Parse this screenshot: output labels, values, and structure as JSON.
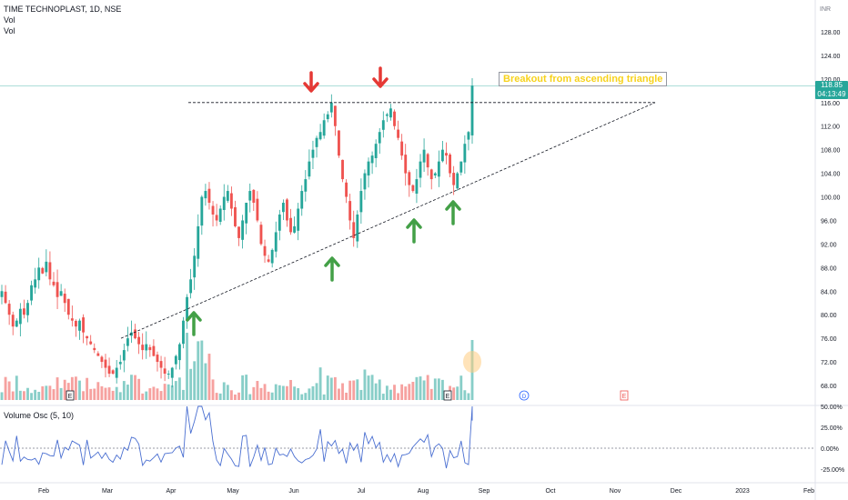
{
  "legend": {
    "symbol": "TIME TECHNOPLAST, 1D, NSE",
    "line2": "Vol",
    "line3": "Vol"
  },
  "oscillator": {
    "label": "Volume Osc (5, 10)"
  },
  "price_tag": {
    "price": "118.85",
    "countdown": "04:13:49"
  },
  "annotation": {
    "text": "Breakout from ascending triangle"
  },
  "colors": {
    "up": "#26a69a",
    "down": "#ef5350",
    "arrow_up": "#43a047",
    "arrow_down": "#e53935",
    "osc_line": "#4a6fd1",
    "annotation_text": "#f7d21b"
  },
  "chart_data": [
    {
      "type": "candlestick",
      "title": "TIME TECHNOPLAST, 1D, NSE",
      "currency": "INR",
      "y_ticks": [
        68,
        72,
        76,
        80,
        84,
        88,
        92,
        96,
        100,
        104,
        108,
        112,
        116,
        120,
        124,
        128
      ],
      "x_ticks": [
        "Feb",
        "Mar",
        "Apr",
        "May",
        "Jun",
        "Jul",
        "Aug",
        "Sep",
        "Oct",
        "Nov",
        "Dec",
        "2023",
        "Feb"
      ],
      "ylim": [
        66,
        132
      ],
      "last_price": 118.85,
      "resistance_level": 116,
      "support_line": {
        "from_price": 76,
        "to_price": 116
      },
      "close_series": [
        84,
        82,
        80,
        78,
        79,
        81,
        80,
        82,
        85,
        86,
        88,
        87,
        89,
        86,
        85,
        83,
        84,
        82,
        80,
        79,
        78,
        79,
        77,
        76,
        75,
        74,
        73,
        72,
        71,
        70,
        70,
        71,
        72,
        74,
        76,
        77,
        76,
        75,
        74,
        75,
        74,
        73,
        72,
        71,
        70,
        70,
        71,
        73,
        75,
        79,
        83,
        86,
        90,
        95,
        100,
        101,
        99,
        97,
        96,
        98,
        100,
        101,
        98,
        95,
        93,
        96,
        99,
        101,
        99,
        96,
        92,
        90,
        89,
        91,
        94,
        97,
        99,
        96,
        94,
        95,
        98,
        101,
        103,
        106,
        108,
        110,
        111,
        113,
        114,
        116,
        112,
        107,
        103,
        100,
        96,
        93,
        97,
        101,
        104,
        106,
        107,
        109,
        111,
        113,
        114,
        115,
        112,
        110,
        107,
        104,
        102,
        101,
        103,
        106,
        108,
        105,
        103,
        104,
        106,
        108,
        107,
        104,
        102,
        104,
        106,
        109,
        111,
        118.85
      ],
      "series": [
        {
          "name": "Volume Osc (5, 10)",
          "y_ticks": [
            "50.00%",
            "25.00%",
            "0.00%",
            "-25.00%"
          ],
          "ylim": [
            -30,
            55
          ]
        }
      ],
      "annotations": [
        "Breakout from ascending triangle"
      ]
    }
  ]
}
